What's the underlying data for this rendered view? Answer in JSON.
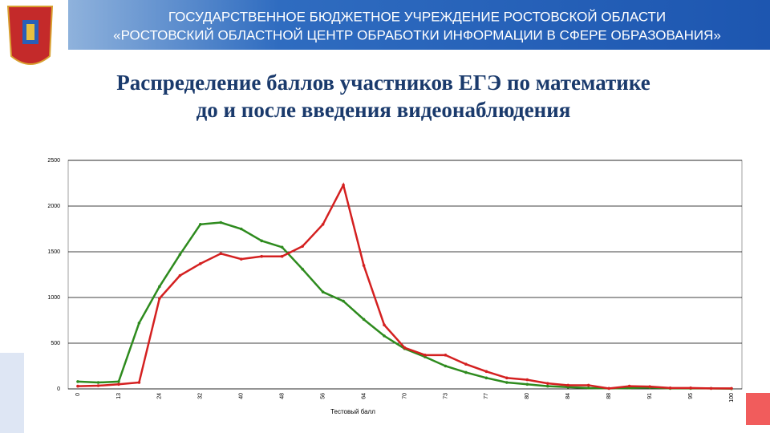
{
  "header": {
    "line1": "ГОСУДАРСТВЕННОЕ БЮДЖЕТНОЕ УЧРЕЖДЕНИЕ РОСТОВСКОЙ ОБЛАСТИ",
    "line2": "«РОСТОВСКИЙ ОБЛАСТНОЙ ЦЕНТР ОБРАБОТКИ ИНФОРМАЦИИ В СФЕРЕ ОБРАЗОВАНИЯ»"
  },
  "chart_data": {
    "type": "line",
    "title": "Распределение баллов участников ЕГЭ по математике",
    "subtitle": "до и после введения видеонаблюдения",
    "x_label": "Тестовый балл",
    "categories": [
      "0",
      null,
      "13",
      null,
      "24",
      null,
      "32",
      null,
      "40",
      null,
      "48",
      null,
      "56",
      null,
      "64",
      null,
      "70",
      null,
      "73",
      null,
      "77",
      null,
      "80",
      null,
      "84",
      null,
      "88",
      null,
      "91",
      null,
      "95",
      null,
      "100"
    ],
    "series": [
      {
        "color": "#2e8b1e",
        "values": [
          80,
          70,
          80,
          720,
          1120,
          1470,
          1800,
          1820,
          1750,
          1620,
          1550,
          1310,
          1060,
          960,
          760,
          580,
          440,
          350,
          250,
          180,
          120,
          70,
          50,
          30,
          20,
          10,
          5,
          10,
          15,
          5,
          5,
          5,
          2
        ]
      },
      {
        "color": "#d42020",
        "values": [
          30,
          35,
          50,
          70,
          990,
          1240,
          1370,
          1480,
          1420,
          1450,
          1450,
          1560,
          1800,
          2230,
          1350,
          700,
          450,
          370,
          370,
          270,
          190,
          120,
          100,
          60,
          40,
          40,
          5,
          30,
          25,
          10,
          10,
          5,
          5
        ]
      }
    ],
    "ylim": [
      0,
      2500
    ],
    "yticks": [
      0,
      500,
      1000,
      1500,
      2000,
      2500
    ],
    "grid": true
  }
}
